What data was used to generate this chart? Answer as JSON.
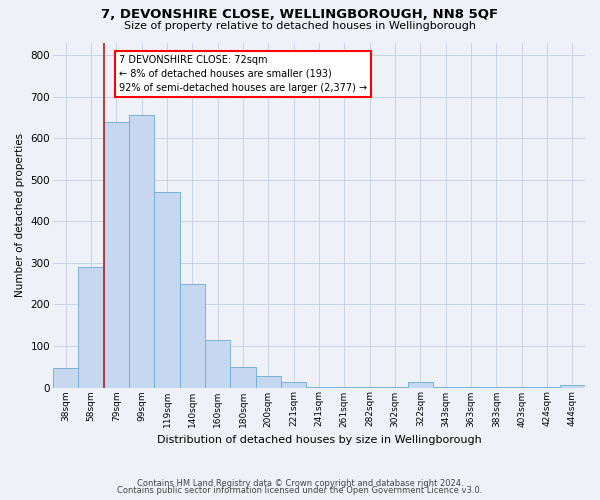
{
  "title": "7, DEVONSHIRE CLOSE, WELLINGBOROUGH, NN8 5QF",
  "subtitle": "Size of property relative to detached houses in Wellingborough",
  "xlabel": "Distribution of detached houses by size in Wellingborough",
  "ylabel": "Number of detached properties",
  "bar_labels": [
    "38sqm",
    "58sqm",
    "79sqm",
    "99sqm",
    "119sqm",
    "140sqm",
    "160sqm",
    "180sqm",
    "200sqm",
    "221sqm",
    "241sqm",
    "261sqm",
    "282sqm",
    "302sqm",
    "322sqm",
    "343sqm",
    "363sqm",
    "383sqm",
    "403sqm",
    "424sqm",
    "444sqm"
  ],
  "bar_values": [
    47,
    290,
    638,
    655,
    470,
    250,
    114,
    50,
    28,
    13,
    2,
    2,
    2,
    2,
    13,
    2,
    2,
    2,
    2,
    2,
    7
  ],
  "bar_color": "#c5d8f0",
  "bar_edgecolor": "#6aaad4",
  "vline_x_pos": 1.5,
  "vline_color": "#aa2222",
  "annotation_title": "7 DEVONSHIRE CLOSE: 72sqm",
  "annotation_line1": "← 8% of detached houses are smaller (193)",
  "annotation_line2": "92% of semi-detached houses are larger (2,377) →",
  "ylim": [
    0,
    830
  ],
  "yticks": [
    0,
    100,
    200,
    300,
    400,
    500,
    600,
    700,
    800
  ],
  "footer1": "Contains HM Land Registry data © Crown copyright and database right 2024.",
  "footer2": "Contains public sector information licensed under the Open Government Licence v3.0.",
  "bg_color": "#eef2f8",
  "grid_color": "#c8d4e8"
}
